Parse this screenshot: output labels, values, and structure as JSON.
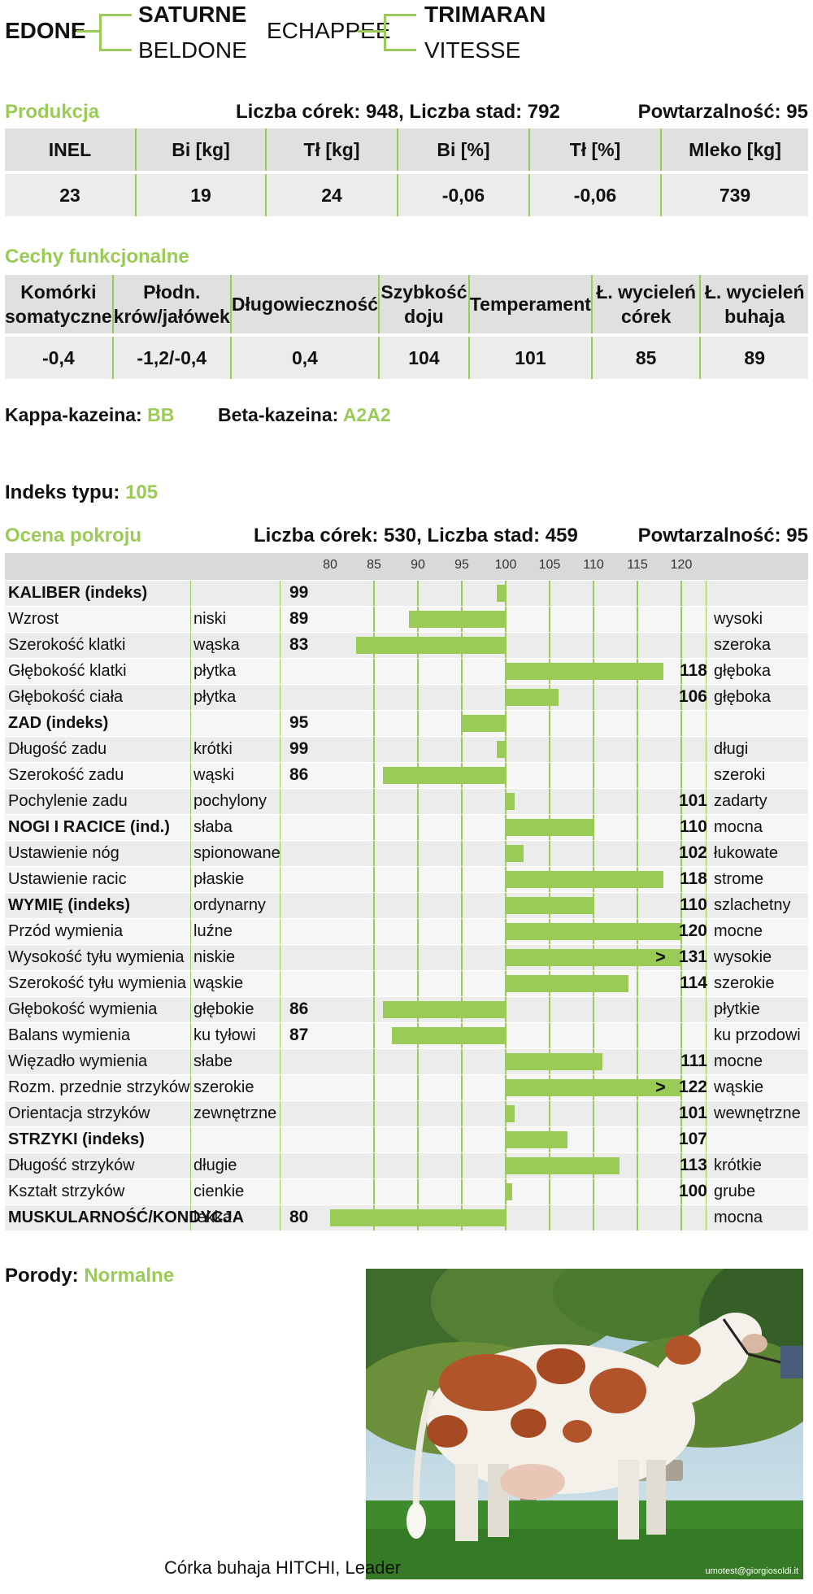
{
  "pedigree": {
    "sire": "EDONE",
    "sire_sire": "SATURNE",
    "sire_dam": "BELDONE",
    "dam_sire": "ECHAPPEE",
    "dam_sire_sire": "TRIMARAN",
    "dam_sire_dam": "VITESSE"
  },
  "produkcja": {
    "title": "Produkcja",
    "summary": "Liczba córek: 948, Liczba stad: 792",
    "repeat": "Powtarzalność: 95",
    "headers": [
      "INEL",
      "Bi [kg]",
      "Tł [kg]",
      "Bi [%]",
      "Tł [%]",
      "Mleko [kg]"
    ],
    "values": [
      "23",
      "19",
      "24",
      "-0,06",
      "-0,06",
      "739"
    ]
  },
  "funkcjonalne": {
    "title": "Cechy funkcjonalne",
    "headers": [
      "Komórki\nsomatyczne",
      "Płodn.\nkrów/jałówek",
      "Długowieczność",
      "Szybkość\ndoju",
      "Temperament",
      "Ł. wycieleń\ncórek",
      "Ł. wycieleń\nbuhaja"
    ],
    "values": [
      "-0,4",
      "-1,2/-0,4",
      "0,4",
      "104",
      "101",
      "85",
      "89"
    ]
  },
  "casein": {
    "kappa_label": "Kappa-kazeina: ",
    "kappa_value": "BB",
    "beta_label": "Beta-kazeina: ",
    "beta_value": "A2A2"
  },
  "indeks": {
    "label": "Indeks typu: ",
    "value": "105"
  },
  "pokroj": {
    "title": "Ocena pokroju",
    "summary": "Liczba córek: 530, Liczba stad: 459",
    "repeat": "Powtarzalność: 95",
    "scale": [
      "80",
      "85",
      "90",
      "95",
      "100",
      "105",
      "110",
      "115",
      "120"
    ],
    "rows": [
      {
        "trait": "KALIBER (indeks)",
        "bold": true,
        "low": "",
        "high": "",
        "value": 99,
        "over": false
      },
      {
        "trait": "Wzrost",
        "bold": false,
        "low": "niski",
        "high": "wysoki",
        "value": 89,
        "over": false
      },
      {
        "trait": "Szerokość klatki",
        "bold": false,
        "low": "wąska",
        "high": "szeroka",
        "value": 83,
        "over": false
      },
      {
        "trait": "Głębokość klatki",
        "bold": false,
        "low": "płytka",
        "high": "głęboka",
        "value": 118,
        "over": false
      },
      {
        "trait": "Głębokość ciała",
        "bold": false,
        "low": "płytka",
        "high": "głęboka",
        "value": 106,
        "over": false
      },
      {
        "trait": "ZAD (indeks)",
        "bold": true,
        "low": "",
        "high": "",
        "value": 95,
        "over": false
      },
      {
        "trait": "Długość zadu",
        "bold": false,
        "low": "krótki",
        "high": "długi",
        "value": 99,
        "over": false
      },
      {
        "trait": "Szerokość zadu",
        "bold": false,
        "low": "wąski",
        "high": "szeroki",
        "value": 86,
        "over": false
      },
      {
        "trait": "Pochylenie zadu",
        "bold": false,
        "low": "pochylony",
        "high": "zadarty",
        "value": 101,
        "over": false
      },
      {
        "trait": "NOGI I RACICE (ind.)",
        "bold": true,
        "low": "słaba",
        "high": "mocna",
        "value": 110,
        "over": false
      },
      {
        "trait": "Ustawienie nóg",
        "bold": false,
        "low": "spionowane",
        "high": "łukowate",
        "value": 102,
        "over": false
      },
      {
        "trait": "Ustawienie racic",
        "bold": false,
        "low": "płaskie",
        "high": "strome",
        "value": 118,
        "over": false
      },
      {
        "trait": "WYMIĘ (indeks)",
        "bold": true,
        "low": "ordynarny",
        "high": "szlachetny",
        "value": 110,
        "over": false
      },
      {
        "trait": "Przód wymienia",
        "bold": false,
        "low": "luźne",
        "high": "mocne",
        "value": 120,
        "over": false
      },
      {
        "trait": "Wysokość tyłu wymienia",
        "bold": false,
        "low": "niskie",
        "high": "wysokie",
        "value": 131,
        "over": true
      },
      {
        "trait": "Szerokość tyłu wymienia",
        "bold": false,
        "low": "wąskie",
        "high": "szerokie",
        "value": 114,
        "over": false
      },
      {
        "trait": "Głębokość wymienia",
        "bold": false,
        "low": "głębokie",
        "high": "płytkie",
        "value": 86,
        "over": false
      },
      {
        "trait": "Balans wymienia",
        "bold": false,
        "low": "ku tyłowi",
        "high": "ku przodowi",
        "value": 87,
        "over": false
      },
      {
        "trait": "Więzadło wymienia",
        "bold": false,
        "low": "słabe",
        "high": "mocne",
        "value": 111,
        "over": false
      },
      {
        "trait": "Rozm. przednie strzyków",
        "bold": false,
        "low": "szerokie",
        "high": "wąskie",
        "value": 122,
        "over": true
      },
      {
        "trait": "Orientacja strzyków",
        "bold": false,
        "low": "zewnętrzne",
        "high": "wewnętrzne",
        "value": 101,
        "over": false
      },
      {
        "trait": "STRZYKI (indeks)",
        "bold": true,
        "low": "",
        "high": "",
        "value": 107,
        "over": false
      },
      {
        "trait": "Długość strzyków",
        "bold": false,
        "low": "długie",
        "high": "krótkie",
        "value": 113,
        "over": false
      },
      {
        "trait": "Kształt strzyków",
        "bold": false,
        "low": "cienkie",
        "high": "grube",
        "value": 100,
        "over": false
      },
      {
        "trait": "MUSKULARNOŚĆ/KONDYCJA",
        "bold": true,
        "low": "lekka",
        "high": "mocna",
        "value": 80,
        "over": false
      }
    ]
  },
  "porody": {
    "label": "Porody: ",
    "value": "Normalne"
  },
  "photo": {
    "caption": "Córka buhaja HITCHI, Leader",
    "credit": "umotest@giorgiosoldi.it"
  },
  "colors": {
    "accent": "#9bcb57",
    "header_bg": "#e0e0e0",
    "row_bg": "#ececec"
  }
}
